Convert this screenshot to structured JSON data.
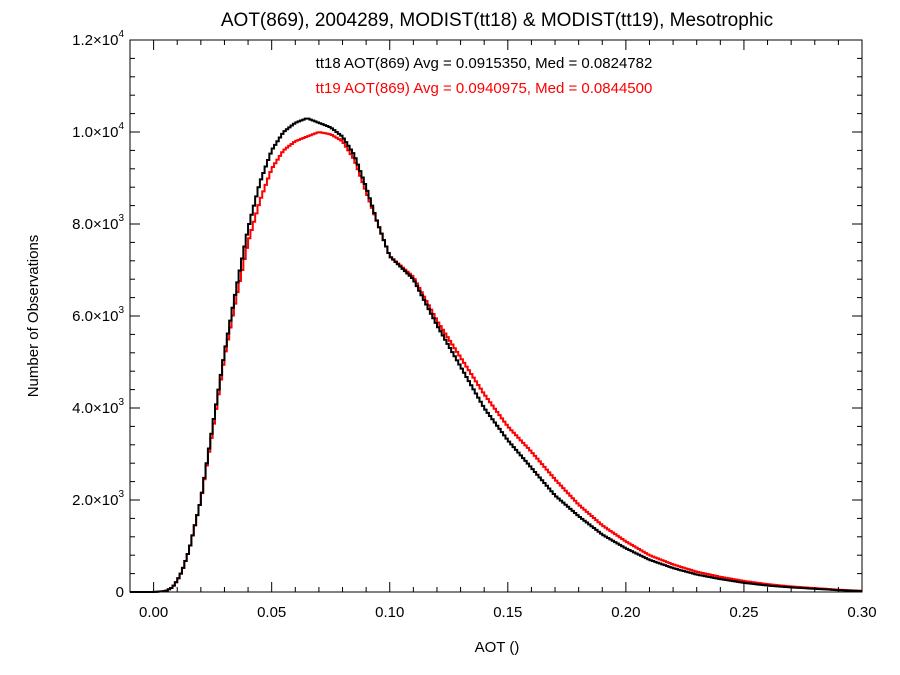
{
  "chart_data": {
    "type": "line",
    "title": "AOT(869), 2004289, MODIST(tt18) & MODIST(tt19), Mesotrophic",
    "xlabel": "AOT ()",
    "ylabel": "Number of Observations",
    "xlim": [
      -0.01,
      0.3
    ],
    "ylim": [
      0,
      12000
    ],
    "grid": false,
    "x_ticks": [
      "0.00",
      "0.05",
      "0.10",
      "0.15",
      "0.20",
      "0.25",
      "0.30"
    ],
    "y_ticks": [
      {
        "value": 0,
        "mantissa": "0",
        "exponent": ""
      },
      {
        "value": 2000,
        "mantissa": "2.0×10",
        "exponent": "3"
      },
      {
        "value": 4000,
        "mantissa": "4.0×10",
        "exponent": "3"
      },
      {
        "value": 6000,
        "mantissa": "6.0×10",
        "exponent": "3"
      },
      {
        "value": 8000,
        "mantissa": "8.0×10",
        "exponent": "3"
      },
      {
        "value": 10000,
        "mantissa": "1.0×10",
        "exponent": "4"
      },
      {
        "value": 12000,
        "mantissa": "1.2×10",
        "exponent": "4"
      }
    ],
    "series": [
      {
        "name": "tt18",
        "color": "#000000",
        "stats_text": "tt18 AOT(869) Avg = 0.0915350, Med = 0.0824782",
        "x": [
          -0.005,
          0.0,
          0.005,
          0.008,
          0.01,
          0.012,
          0.015,
          0.02,
          0.025,
          0.03,
          0.035,
          0.04,
          0.045,
          0.05,
          0.055,
          0.06,
          0.065,
          0.07,
          0.075,
          0.08,
          0.085,
          0.09,
          0.095,
          0.1,
          0.11,
          0.12,
          0.13,
          0.14,
          0.15,
          0.16,
          0.17,
          0.18,
          0.19,
          0.2,
          0.21,
          0.22,
          0.23,
          0.24,
          0.25,
          0.26,
          0.27,
          0.28,
          0.29,
          0.3
        ],
        "y": [
          0,
          0,
          20,
          100,
          250,
          450,
          900,
          2000,
          3600,
          5200,
          6600,
          7900,
          8900,
          9600,
          10000,
          10200,
          10300,
          10200,
          10100,
          9900,
          9500,
          8800,
          8000,
          7300,
          6800,
          5800,
          4900,
          4000,
          3300,
          2700,
          2100,
          1650,
          1250,
          950,
          700,
          520,
          380,
          280,
          200,
          140,
          100,
          70,
          40,
          20
        ]
      },
      {
        "name": "tt19",
        "color": "#ff0000",
        "stats_text": "tt19 AOT(869) Avg = 0.0940975, Med = 0.0844500",
        "x": [
          -0.005,
          0.0,
          0.005,
          0.008,
          0.01,
          0.012,
          0.015,
          0.02,
          0.025,
          0.03,
          0.035,
          0.04,
          0.045,
          0.05,
          0.055,
          0.06,
          0.065,
          0.07,
          0.075,
          0.08,
          0.085,
          0.09,
          0.095,
          0.1,
          0.11,
          0.12,
          0.13,
          0.14,
          0.15,
          0.16,
          0.17,
          0.18,
          0.19,
          0.2,
          0.21,
          0.22,
          0.23,
          0.24,
          0.25,
          0.26,
          0.27,
          0.28,
          0.29,
          0.3
        ],
        "y": [
          0,
          0,
          20,
          100,
          250,
          450,
          900,
          2000,
          3500,
          5100,
          6400,
          7600,
          8500,
          9200,
          9600,
          9800,
          9900,
          10000,
          9950,
          9800,
          9400,
          8700,
          8000,
          7300,
          6850,
          5900,
          5100,
          4300,
          3600,
          3050,
          2450,
          1900,
          1450,
          1100,
          800,
          600,
          440,
          330,
          240,
          170,
          120,
          85,
          50,
          25
        ]
      }
    ]
  }
}
